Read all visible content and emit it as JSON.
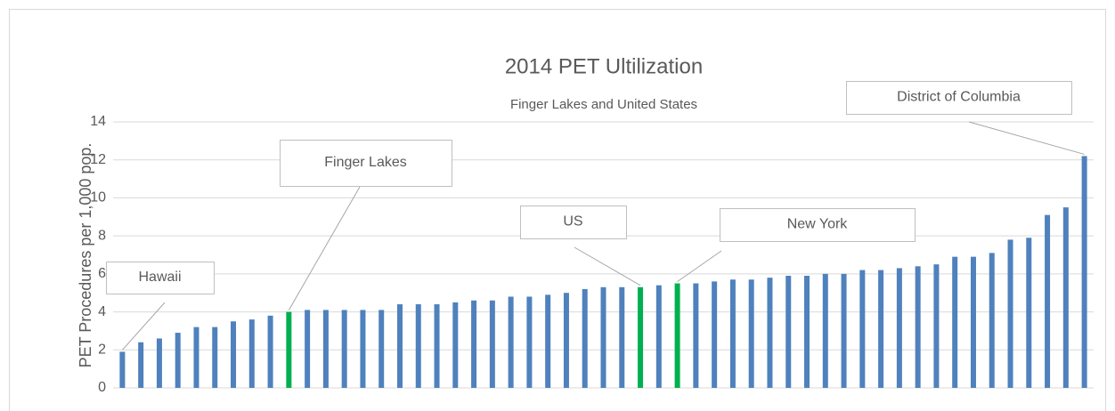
{
  "chart_data": {
    "type": "bar",
    "title": "2014 PET Ultilization",
    "subtitle": "Finger Lakes and United States",
    "y_label": "PET Procedures per 1,000 pop.",
    "categories": [
      null,
      null,
      null,
      null,
      null,
      null,
      null,
      null,
      null,
      null,
      null,
      null,
      null,
      null,
      null,
      null,
      null,
      null,
      null,
      null,
      null,
      null,
      null,
      null,
      null,
      null,
      null,
      null,
      null,
      null,
      null,
      null,
      null,
      null,
      null,
      null,
      null,
      null,
      null,
      null,
      null,
      null,
      null,
      null,
      null,
      null,
      null,
      null,
      null,
      null,
      null,
      null,
      null
    ],
    "values": [
      1.9,
      2.4,
      2.6,
      2.9,
      3.2,
      3.2,
      3.5,
      3.6,
      3.8,
      4.0,
      4.1,
      4.1,
      4.1,
      4.1,
      4.1,
      4.4,
      4.4,
      4.4,
      4.5,
      4.6,
      4.6,
      4.8,
      4.8,
      4.9,
      5.0,
      5.2,
      5.3,
      5.3,
      5.3,
      5.4,
      5.5,
      5.5,
      5.6,
      5.7,
      5.7,
      5.8,
      5.9,
      5.9,
      6.0,
      6.0,
      6.2,
      6.2,
      6.3,
      6.4,
      6.5,
      6.9,
      6.9,
      7.1,
      7.8,
      7.9,
      9.1,
      9.5,
      12.2
    ],
    "colors": [
      "#4f81bd",
      "#4f81bd",
      "#4f81bd",
      "#4f81bd",
      "#4f81bd",
      "#4f81bd",
      "#4f81bd",
      "#4f81bd",
      "#4f81bd",
      "#00b050",
      "#4f81bd",
      "#4f81bd",
      "#4f81bd",
      "#4f81bd",
      "#4f81bd",
      "#4f81bd",
      "#4f81bd",
      "#4f81bd",
      "#4f81bd",
      "#4f81bd",
      "#4f81bd",
      "#4f81bd",
      "#4f81bd",
      "#4f81bd",
      "#4f81bd",
      "#4f81bd",
      "#4f81bd",
      "#4f81bd",
      "#00b050",
      "#4f81bd",
      "#00b050",
      "#4f81bd",
      "#4f81bd",
      "#4f81bd",
      "#4f81bd",
      "#4f81bd",
      "#4f81bd",
      "#4f81bd",
      "#4f81bd",
      "#4f81bd",
      "#4f81bd",
      "#4f81bd",
      "#4f81bd",
      "#4f81bd",
      "#4f81bd",
      "#4f81bd",
      "#4f81bd",
      "#4f81bd",
      "#4f81bd",
      "#4f81bd",
      "#4f81bd",
      "#4f81bd",
      "#4f81bd"
    ],
    "annotations": [
      {
        "text": "Hawaii",
        "index": 0
      },
      {
        "text": "Finger Lakes",
        "index": 9
      },
      {
        "text": "US",
        "index": 28
      },
      {
        "text": "New York",
        "index": 30
      },
      {
        "text": "District of Columbia",
        "index": 52
      }
    ],
    "ylim": [
      0,
      14
    ],
    "yticks": [
      0,
      2,
      4,
      6,
      8,
      10,
      12,
      14
    ],
    "grid": true
  }
}
